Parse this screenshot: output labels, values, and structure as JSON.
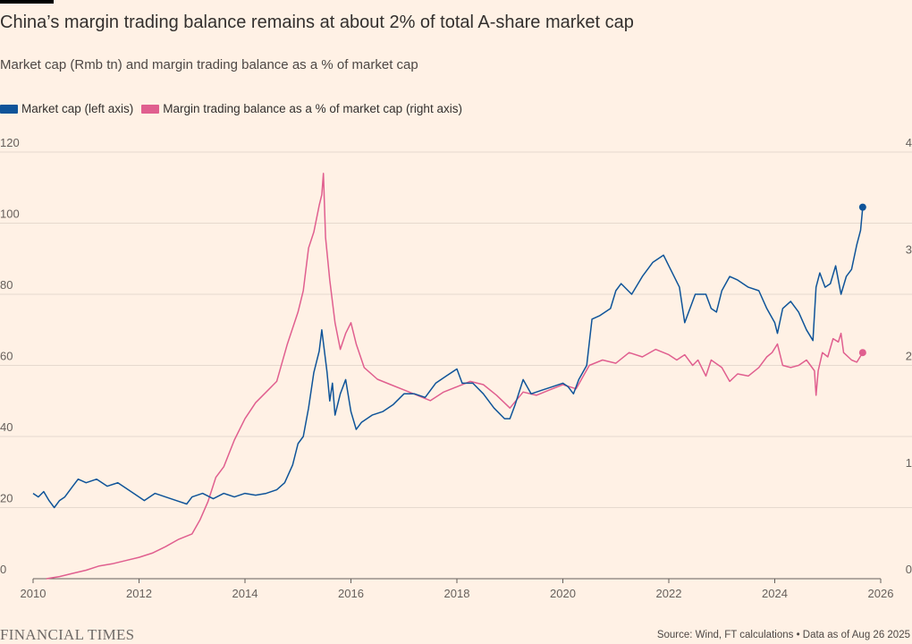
{
  "title": "China’s margin trading balance remains at about 2% of total A-share market cap",
  "subtitle": "Market cap (Rmb tn) and margin trading balance as a % of market cap",
  "legend": [
    {
      "label": "Market cap (left axis)",
      "color": "#0F5499"
    },
    {
      "label": "Margin trading balance as a % of market cap (right axis)",
      "color": "#E05F8F"
    }
  ],
  "footer": {
    "brand": "FINANCIAL TIMES",
    "source": "Source: Wind, FT calculations • Data as of Aug 26 2025"
  },
  "chart_data": {
    "type": "line",
    "title": "China’s margin trading balance remains at about 2% of total A-share market cap",
    "subtitle": "Market cap (Rmb tn) and margin trading balance as a % of market cap",
    "xlim": [
      2010,
      2026.2
    ],
    "x_ticks": [
      "2010",
      "2012",
      "2014",
      "2016",
      "2018",
      "2020",
      "2022",
      "2024",
      "2026"
    ],
    "y_left": {
      "ylim": [
        0,
        120
      ],
      "ticks": [
        "0",
        "20",
        "40",
        "60",
        "80",
        "100",
        "120"
      ]
    },
    "y_right": {
      "ylim": [
        0,
        4
      ],
      "ticks": [
        "0",
        "1",
        "2",
        "3",
        "4"
      ]
    },
    "grid": "horizontal",
    "legend_position": "top-left",
    "series": [
      {
        "name": "Market cap (left axis)",
        "axis": "left",
        "color": "#0F5499",
        "end_marker": true,
        "points": [
          [
            2010.0,
            24
          ],
          [
            2010.1,
            23
          ],
          [
            2010.2,
            24.5
          ],
          [
            2010.3,
            22
          ],
          [
            2010.4,
            20
          ],
          [
            2010.5,
            22
          ],
          [
            2010.6,
            23
          ],
          [
            2010.75,
            26
          ],
          [
            2010.85,
            28
          ],
          [
            2011.0,
            27
          ],
          [
            2011.2,
            28
          ],
          [
            2011.4,
            26
          ],
          [
            2011.6,
            27
          ],
          [
            2011.8,
            25
          ],
          [
            2012.0,
            23
          ],
          [
            2012.1,
            22
          ],
          [
            2012.3,
            24
          ],
          [
            2012.5,
            23
          ],
          [
            2012.7,
            22
          ],
          [
            2012.9,
            21
          ],
          [
            2013.0,
            23
          ],
          [
            2013.2,
            24
          ],
          [
            2013.4,
            22.5
          ],
          [
            2013.6,
            24
          ],
          [
            2013.8,
            23
          ],
          [
            2014.0,
            24
          ],
          [
            2014.2,
            23.5
          ],
          [
            2014.4,
            24
          ],
          [
            2014.6,
            25
          ],
          [
            2014.75,
            27
          ],
          [
            2014.9,
            32
          ],
          [
            2015.0,
            38
          ],
          [
            2015.1,
            40
          ],
          [
            2015.2,
            48
          ],
          [
            2015.3,
            58
          ],
          [
            2015.4,
            64
          ],
          [
            2015.45,
            70
          ],
          [
            2015.55,
            58
          ],
          [
            2015.6,
            50
          ],
          [
            2015.65,
            55
          ],
          [
            2015.7,
            46
          ],
          [
            2015.8,
            52
          ],
          [
            2015.9,
            56
          ],
          [
            2016.0,
            47
          ],
          [
            2016.1,
            42
          ],
          [
            2016.2,
            44
          ],
          [
            2016.4,
            46
          ],
          [
            2016.6,
            47
          ],
          [
            2016.8,
            49
          ],
          [
            2017.0,
            52
          ],
          [
            2017.2,
            52
          ],
          [
            2017.4,
            51
          ],
          [
            2017.6,
            55
          ],
          [
            2017.8,
            57
          ],
          [
            2018.0,
            59
          ],
          [
            2018.1,
            55
          ],
          [
            2018.3,
            55
          ],
          [
            2018.5,
            52
          ],
          [
            2018.7,
            48
          ],
          [
            2018.9,
            45
          ],
          [
            2019.0,
            45
          ],
          [
            2019.1,
            49
          ],
          [
            2019.25,
            56
          ],
          [
            2019.4,
            52
          ],
          [
            2019.6,
            53
          ],
          [
            2019.8,
            54
          ],
          [
            2020.0,
            55
          ],
          [
            2020.1,
            54
          ],
          [
            2020.2,
            52
          ],
          [
            2020.3,
            56
          ],
          [
            2020.45,
            60
          ],
          [
            2020.55,
            73
          ],
          [
            2020.7,
            74
          ],
          [
            2020.9,
            76
          ],
          [
            2021.0,
            81
          ],
          [
            2021.1,
            83
          ],
          [
            2021.3,
            80
          ],
          [
            2021.5,
            85
          ],
          [
            2021.7,
            89
          ],
          [
            2021.9,
            91
          ],
          [
            2022.0,
            88
          ],
          [
            2022.2,
            82
          ],
          [
            2022.3,
            72
          ],
          [
            2022.5,
            80
          ],
          [
            2022.7,
            80
          ],
          [
            2022.8,
            76
          ],
          [
            2022.9,
            75
          ],
          [
            2023.0,
            81
          ],
          [
            2023.15,
            85
          ],
          [
            2023.3,
            84
          ],
          [
            2023.5,
            82
          ],
          [
            2023.7,
            81
          ],
          [
            2023.85,
            76
          ],
          [
            2024.0,
            72
          ],
          [
            2024.05,
            69
          ],
          [
            2024.15,
            76
          ],
          [
            2024.3,
            78
          ],
          [
            2024.45,
            75
          ],
          [
            2024.6,
            70
          ],
          [
            2024.72,
            67
          ],
          [
            2024.78,
            82
          ],
          [
            2024.85,
            86
          ],
          [
            2024.95,
            82
          ],
          [
            2025.05,
            83
          ],
          [
            2025.15,
            88
          ],
          [
            2025.25,
            80
          ],
          [
            2025.35,
            85
          ],
          [
            2025.45,
            87
          ],
          [
            2025.55,
            94
          ],
          [
            2025.62,
            98
          ],
          [
            2025.66,
            104.5
          ]
        ]
      },
      {
        "name": "Margin trading balance as a % of market cap (right axis)",
        "axis": "right",
        "color": "#E05F8F",
        "end_marker": true,
        "points": [
          [
            2010.25,
            0.0
          ],
          [
            2010.5,
            0.02
          ],
          [
            2010.75,
            0.05
          ],
          [
            2011.0,
            0.08
          ],
          [
            2011.25,
            0.12
          ],
          [
            2011.5,
            0.14
          ],
          [
            2011.75,
            0.17
          ],
          [
            2012.0,
            0.2
          ],
          [
            2012.25,
            0.24
          ],
          [
            2012.5,
            0.3
          ],
          [
            2012.75,
            0.37
          ],
          [
            2013.0,
            0.42
          ],
          [
            2013.15,
            0.55
          ],
          [
            2013.3,
            0.72
          ],
          [
            2013.45,
            0.95
          ],
          [
            2013.6,
            1.05
          ],
          [
            2013.8,
            1.3
          ],
          [
            2014.0,
            1.5
          ],
          [
            2014.2,
            1.65
          ],
          [
            2014.4,
            1.75
          ],
          [
            2014.6,
            1.85
          ],
          [
            2014.8,
            2.2
          ],
          [
            2015.0,
            2.5
          ],
          [
            2015.1,
            2.7
          ],
          [
            2015.2,
            3.1
          ],
          [
            2015.3,
            3.25
          ],
          [
            2015.4,
            3.5
          ],
          [
            2015.45,
            3.6
          ],
          [
            2015.48,
            3.8
          ],
          [
            2015.52,
            3.2
          ],
          [
            2015.6,
            2.8
          ],
          [
            2015.7,
            2.4
          ],
          [
            2015.8,
            2.15
          ],
          [
            2015.9,
            2.3
          ],
          [
            2016.0,
            2.4
          ],
          [
            2016.1,
            2.2
          ],
          [
            2016.25,
            1.98
          ],
          [
            2016.5,
            1.87
          ],
          [
            2016.75,
            1.82
          ],
          [
            2017.0,
            1.77
          ],
          [
            2017.25,
            1.72
          ],
          [
            2017.5,
            1.67
          ],
          [
            2017.75,
            1.75
          ],
          [
            2018.0,
            1.8
          ],
          [
            2018.25,
            1.85
          ],
          [
            2018.5,
            1.82
          ],
          [
            2018.75,
            1.72
          ],
          [
            2019.0,
            1.6
          ],
          [
            2019.25,
            1.75
          ],
          [
            2019.5,
            1.72
          ],
          [
            2019.75,
            1.77
          ],
          [
            2020.0,
            1.82
          ],
          [
            2020.25,
            1.78
          ],
          [
            2020.5,
            2.0
          ],
          [
            2020.75,
            2.05
          ],
          [
            2021.0,
            2.02
          ],
          [
            2021.25,
            2.12
          ],
          [
            2021.5,
            2.08
          ],
          [
            2021.75,
            2.15
          ],
          [
            2022.0,
            2.1
          ],
          [
            2022.15,
            2.05
          ],
          [
            2022.3,
            2.1
          ],
          [
            2022.45,
            2.0
          ],
          [
            2022.55,
            2.05
          ],
          [
            2022.7,
            1.9
          ],
          [
            2022.8,
            2.05
          ],
          [
            2023.0,
            1.98
          ],
          [
            2023.15,
            1.85
          ],
          [
            2023.3,
            1.92
          ],
          [
            2023.5,
            1.9
          ],
          [
            2023.7,
            1.98
          ],
          [
            2023.85,
            2.08
          ],
          [
            2023.95,
            2.12
          ],
          [
            2024.05,
            2.2
          ],
          [
            2024.15,
            2.0
          ],
          [
            2024.3,
            1.98
          ],
          [
            2024.45,
            2.0
          ],
          [
            2024.6,
            2.05
          ],
          [
            2024.75,
            1.95
          ],
          [
            2024.78,
            1.72
          ],
          [
            2024.82,
            1.95
          ],
          [
            2024.9,
            2.12
          ],
          [
            2025.0,
            2.08
          ],
          [
            2025.1,
            2.25
          ],
          [
            2025.2,
            2.22
          ],
          [
            2025.25,
            2.3
          ],
          [
            2025.3,
            2.12
          ],
          [
            2025.45,
            2.05
          ],
          [
            2025.55,
            2.03
          ],
          [
            2025.66,
            2.12
          ]
        ]
      }
    ]
  }
}
